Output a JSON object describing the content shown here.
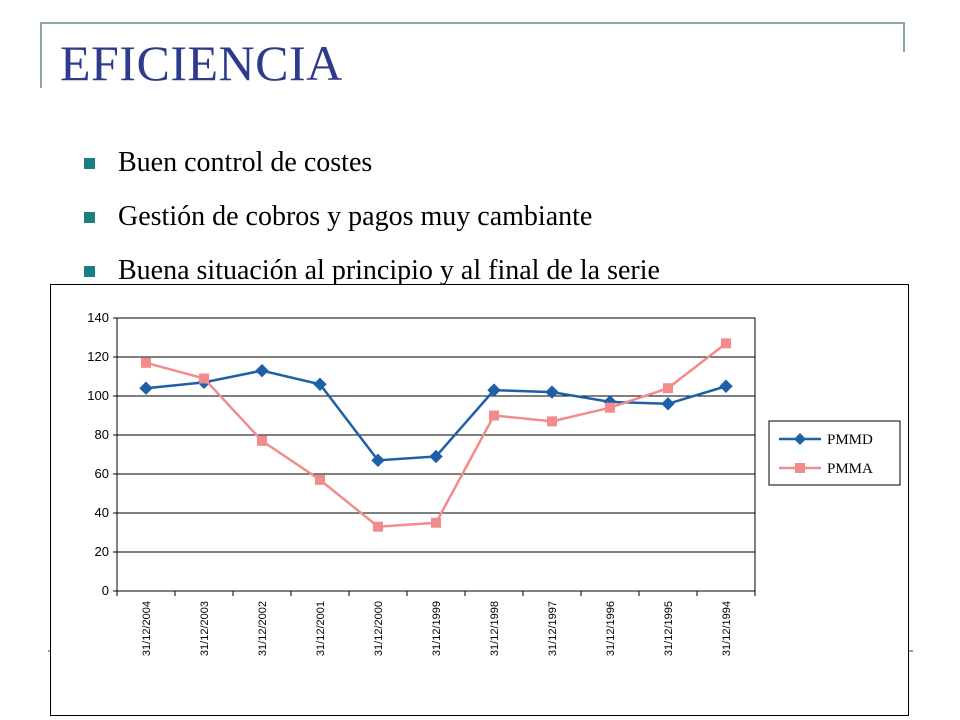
{
  "slide": {
    "title": "EFICIENCIA",
    "bullets": [
      "Buen control de costes",
      "Gestión de cobros y pagos muy cambiante",
      "Buena situación al principio y al final de la serie"
    ],
    "colors": {
      "title": "#2e3a8c",
      "bullet": "#1c7f7f",
      "frame": "#8fa5a3"
    }
  },
  "chart_data": {
    "type": "line",
    "title": "",
    "xlabel": "",
    "ylabel": "",
    "categories": [
      "31/12/2004",
      "31/12/2003",
      "31/12/2002",
      "31/12/2001",
      "31/12/2000",
      "31/12/1999",
      "31/12/1998",
      "31/12/1997",
      "31/12/1996",
      "31/12/1995",
      "31/12/1994"
    ],
    "ylim": [
      0,
      140
    ],
    "yticks": [
      0,
      20,
      40,
      60,
      80,
      100,
      120,
      140
    ],
    "grid": true,
    "legend_position": "right",
    "series": [
      {
        "name": "PMMD",
        "color": "#1f5fa8",
        "marker": "diamond",
        "values": [
          104,
          107,
          113,
          106,
          67,
          69,
          103,
          102,
          97,
          96,
          105
        ]
      },
      {
        "name": "PMMA",
        "color": "#f28c8c",
        "marker": "square",
        "values": [
          117,
          109,
          77,
          57,
          33,
          35,
          90,
          87,
          94,
          104,
          127
        ]
      }
    ]
  }
}
